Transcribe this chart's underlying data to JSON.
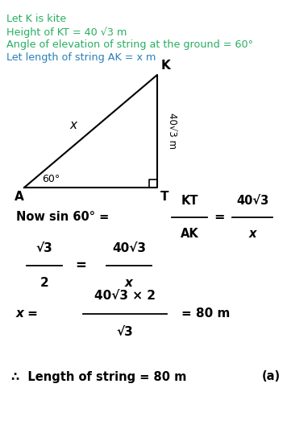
{
  "bg_color": "#ffffff",
  "green": "#27ae60",
  "blue": "#2980b9",
  "black": "#000000",
  "line1": "Let K is kite",
  "line2": "Height of KT = 40 √3 m",
  "line3": "Angle of elevation of string at the ground = 60°",
  "line4": "Let length of string AK = x m",
  "label_A": "A",
  "label_T": "T",
  "label_K": "K",
  "label_x": "x",
  "label_angle": "60°",
  "label_side": "40√3 m",
  "conclusion": "∴  Length of string = 80 m",
  "answer_label": "(a)"
}
